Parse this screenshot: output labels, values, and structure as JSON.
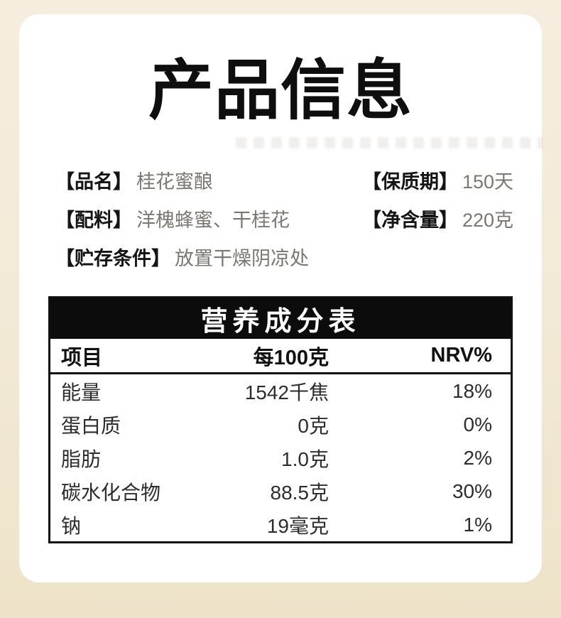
{
  "page": {
    "title": "产品信息"
  },
  "info": {
    "rows": [
      {
        "label": "【品名】",
        "value": "桂花蜜酿"
      },
      {
        "label": "【保质期】",
        "value": "150天"
      },
      {
        "label": "【配料】",
        "value": "洋槐蜂蜜、干桂花"
      },
      {
        "label": "【净含量】",
        "value": "220克"
      },
      {
        "label": "【贮存条件】",
        "value": "放置干燥阴凉处"
      }
    ]
  },
  "nutrition": {
    "title": "营养成分表",
    "columns": {
      "item": "项目",
      "per100g": "每100克",
      "nrv": "NRV%"
    },
    "rows": [
      {
        "item": "能量",
        "per100g": "1542千焦",
        "nrv": "18%"
      },
      {
        "item": "蛋白质",
        "per100g": "0克",
        "nrv": "0%"
      },
      {
        "item": "脂肪",
        "per100g": "1.0克",
        "nrv": "2%"
      },
      {
        "item": "碳水化合物",
        "per100g": "88.5克",
        "nrv": "30%"
      },
      {
        "item": "钠",
        "per100g": "19毫克",
        "nrv": "1%"
      }
    ]
  },
  "colors": {
    "background": "#f2e9d5",
    "card": "#ffffff",
    "text_primary": "#111111",
    "text_secondary": "#7b7874",
    "table_border": "#101010",
    "table_header_bg": "#0c0c0c",
    "table_header_text": "#ffffff"
  }
}
